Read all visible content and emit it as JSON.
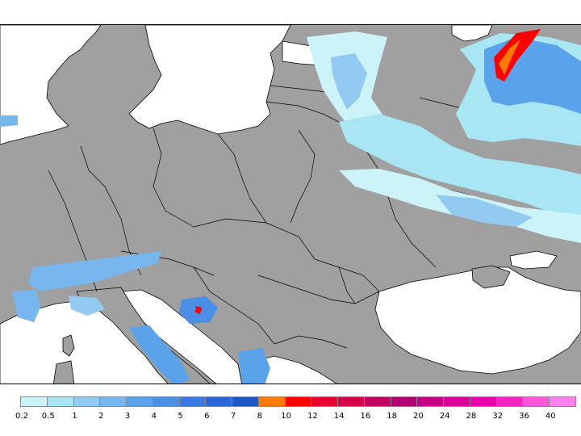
{
  "map": {
    "land_color": "#a0a0a0",
    "water_color": "#ffffff",
    "border_color": "#000000"
  },
  "legend": {
    "tick_labels": [
      "0.2",
      "0.5",
      "1",
      "2",
      "3",
      "4",
      "5",
      "6",
      "7",
      "8",
      "10",
      "12",
      "14",
      "16",
      "18",
      "20",
      "24",
      "28",
      "32",
      "36",
      "40"
    ],
    "colors": [
      "#ccf4f8",
      "#a8e6f4",
      "#92caf2",
      "#78b6ee",
      "#5aa2ea",
      "#4a8ee6",
      "#3a7ae0",
      "#2a66d6",
      "#1e56c4",
      "#ff7a00",
      "#ff0000",
      "#e8002e",
      "#d40048",
      "#c0005e",
      "#b00072",
      "#c40084",
      "#d80096",
      "#e800aa",
      "#f424c0",
      "#fa58d6",
      "#ff80ee"
    ]
  }
}
